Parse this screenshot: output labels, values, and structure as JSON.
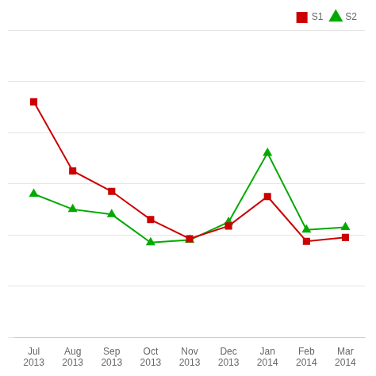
{
  "chart_data": {
    "type": "line",
    "categories": [
      "Jul 2013",
      "Aug 2013",
      "Sep 2013",
      "Oct 2013",
      "Nov 2013",
      "Dec 2013",
      "Jan 2014",
      "Feb 2014",
      "Mar 2014"
    ],
    "series": [
      {
        "name": "S1",
        "color": "#cc0000",
        "marker": "square",
        "values": [
          9.2,
          6.5,
          5.7,
          4.6,
          3.85,
          4.35,
          5.5,
          3.75,
          3.9
        ]
      },
      {
        "name": "S2",
        "color": "#00aa00",
        "marker": "triangle",
        "values": [
          5.6,
          5.0,
          4.8,
          3.7,
          3.8,
          4.5,
          7.2,
          4.2,
          4.3
        ]
      }
    ],
    "ylim": [
      0,
      12
    ],
    "yticks": [
      0,
      2,
      4,
      6,
      8,
      10,
      12
    ],
    "grid": true,
    "legend": "upper right",
    "tick_labels": "x"
  }
}
